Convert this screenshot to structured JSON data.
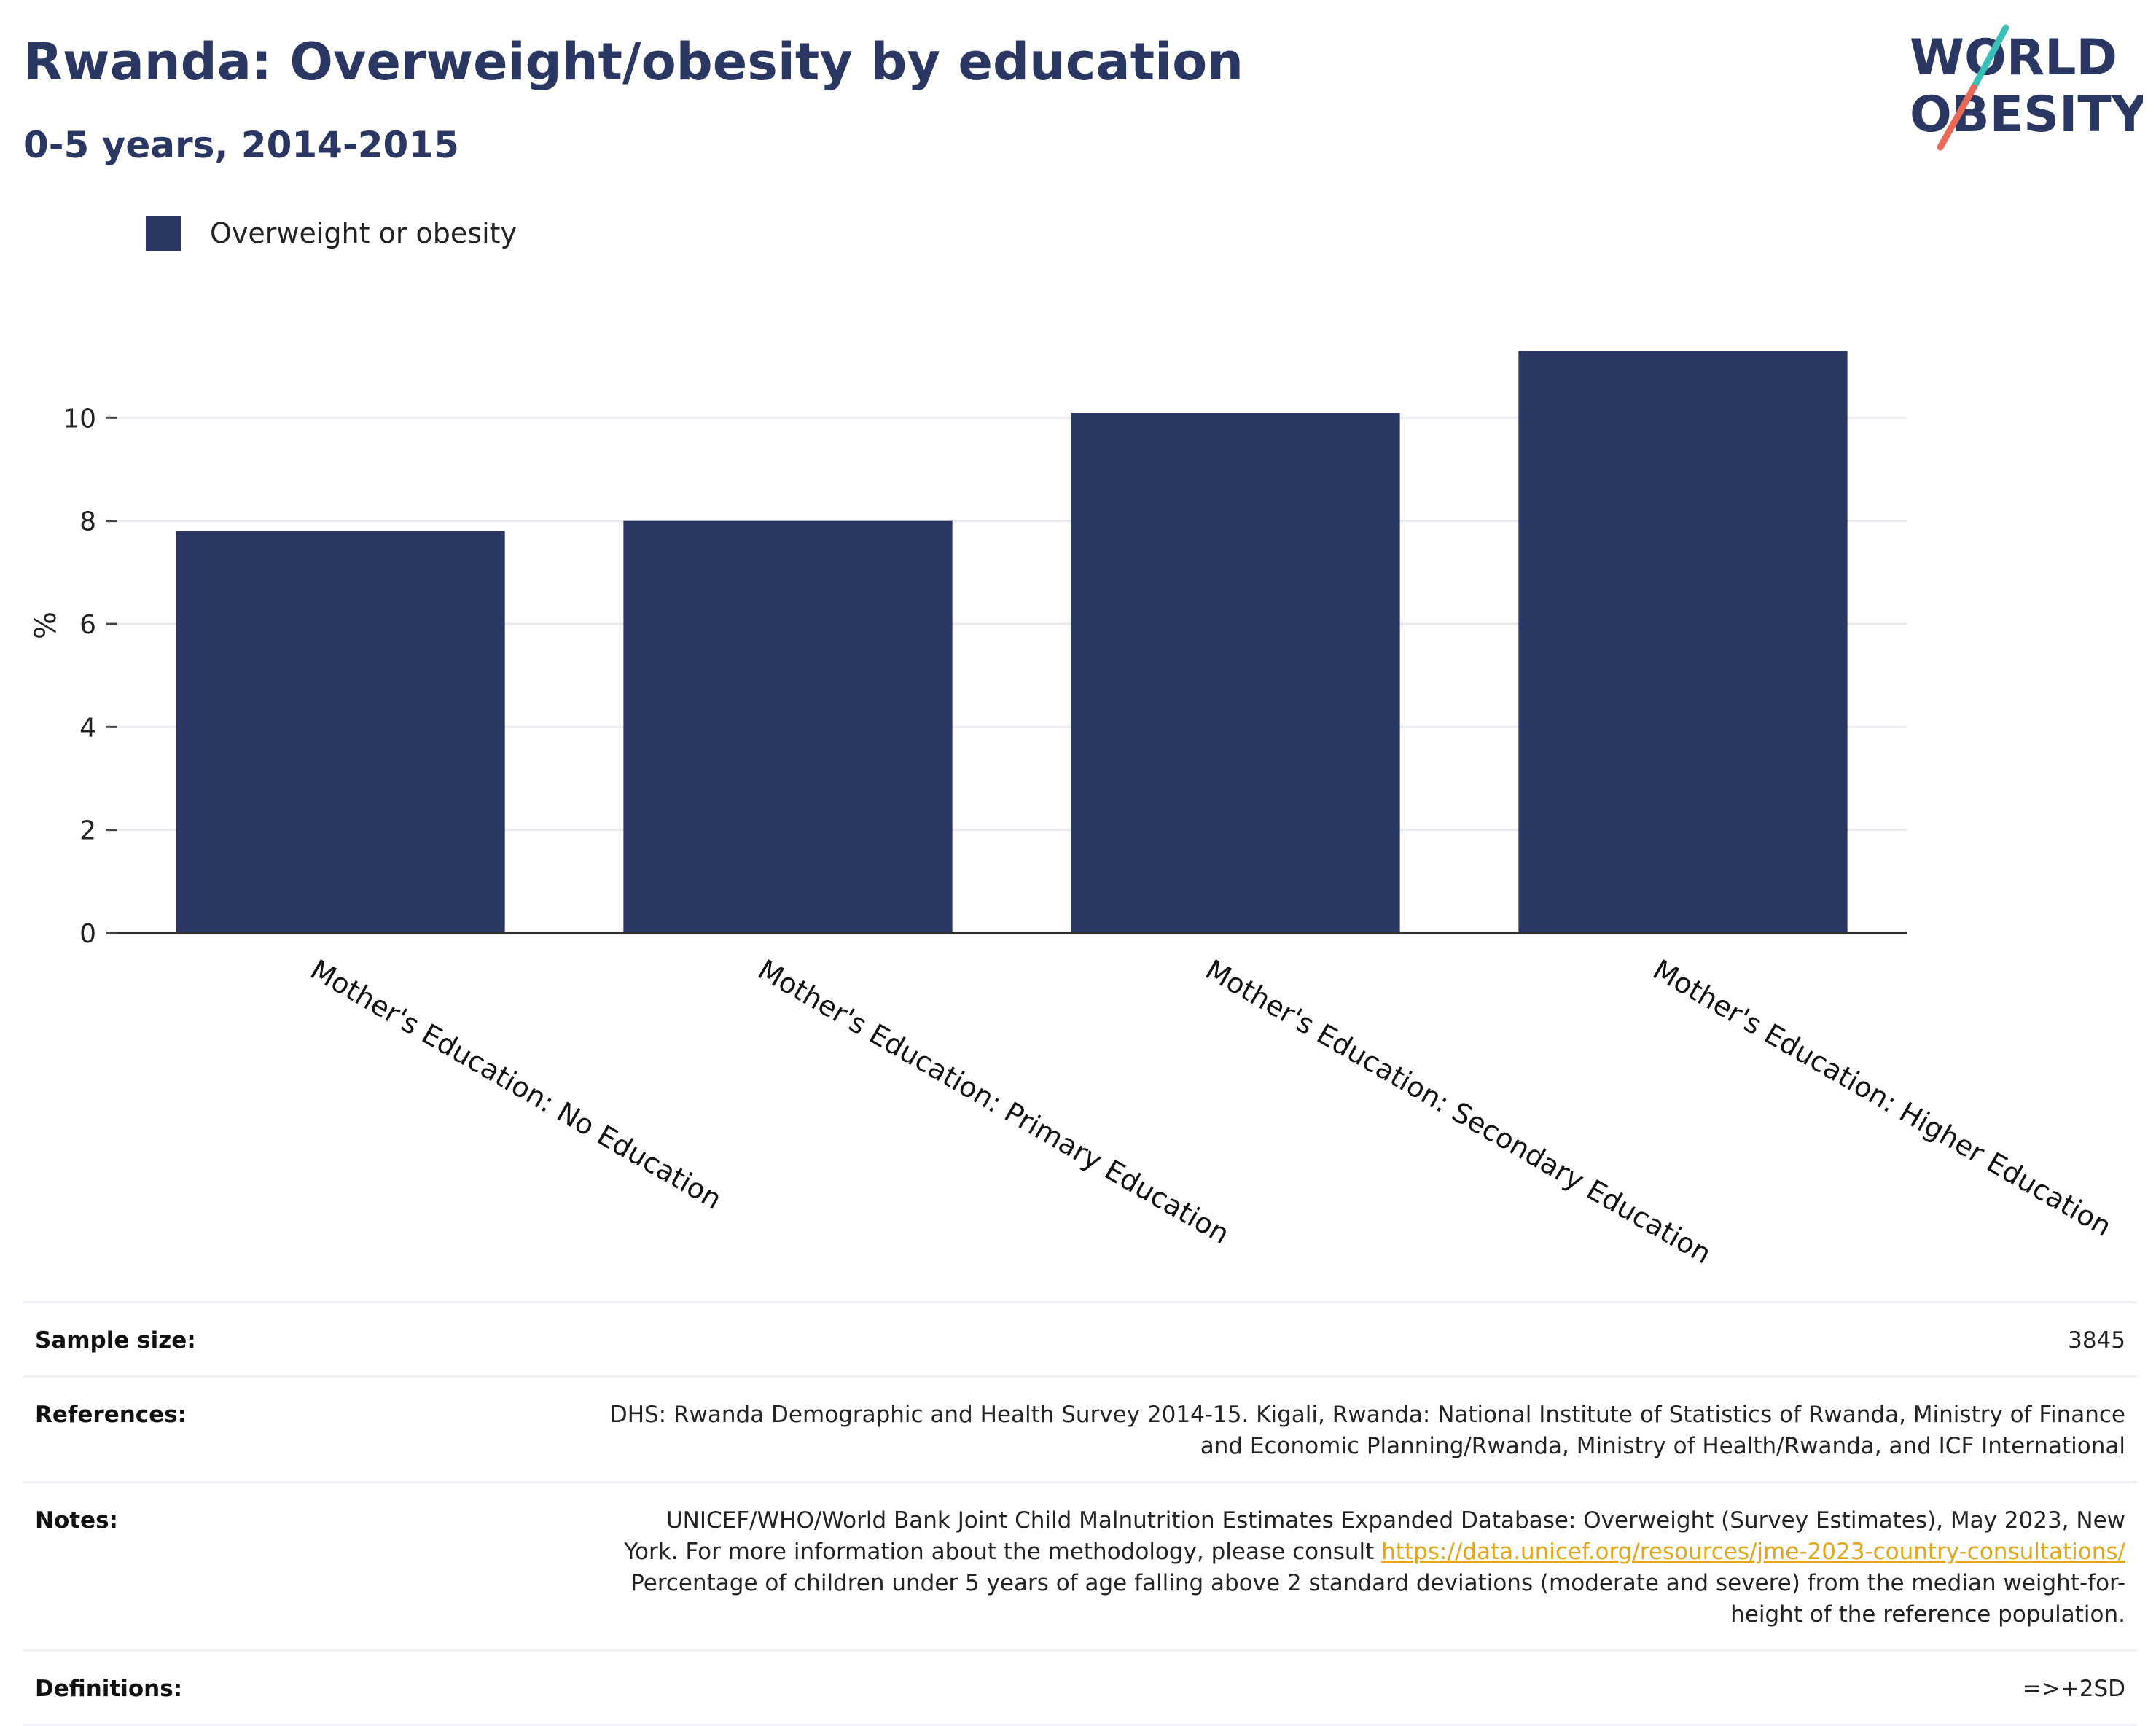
{
  "header": {
    "title": "Rwanda: Overweight/obesity by education",
    "subtitle": "0-5 years, 2014-2015"
  },
  "logo": {
    "line1": "WORLD",
    "line2": "OBESITY",
    "accent_teal": "#3bbfb9",
    "accent_coral": "#ea6a5a"
  },
  "legend": {
    "label": "Overweight or obesity",
    "color": "#2b3763"
  },
  "chart_data": {
    "type": "bar",
    "categories": [
      "Mother's Education: No Education",
      "Mother's Education: Primary Education",
      "Mother's Education: Secondary Education",
      "Mother's Education: Higher Education"
    ],
    "series": [
      {
        "name": "Overweight or obesity",
        "values": [
          7.8,
          8.0,
          10.1,
          11.3
        ],
        "color": "#2b3763"
      }
    ],
    "ylabel": "%",
    "ylim": [
      0,
      12
    ],
    "yticks": [
      0,
      2,
      4,
      6,
      8,
      10
    ],
    "grid": true,
    "legend_position": "top-left"
  },
  "info": {
    "sample_label": "Sample size:",
    "sample_value": "3845",
    "references_label": "References:",
    "references_line1": "DHS: Rwanda Demographic and Health Survey 2014-15. Kigali, Rwanda: National Institute of Statistics of Rwanda, Ministry of Finance",
    "references_line2": "and Economic Planning/Rwanda, Ministry of Health/Rwanda, and ICF International",
    "notes_label": "Notes:",
    "notes_line1": "UNICEF/WHO/World Bank Joint Child Malnutrition Estimates Expanded Database: Overweight (Survey Estimates), May 2023, New",
    "notes_line2": "York. For more information about the methodology, please consult",
    "notes_link": "https://data.unicef.org/resources/jme-2023-country-consultations/",
    "notes_line3": "Percentage of children under 5 years of age falling above 2 standard deviations (moderate and severe) from the median weight-for-",
    "notes_line4": "height of the reference population.",
    "definitions_label": "Definitions:",
    "definitions_value": "=>+2SD"
  }
}
